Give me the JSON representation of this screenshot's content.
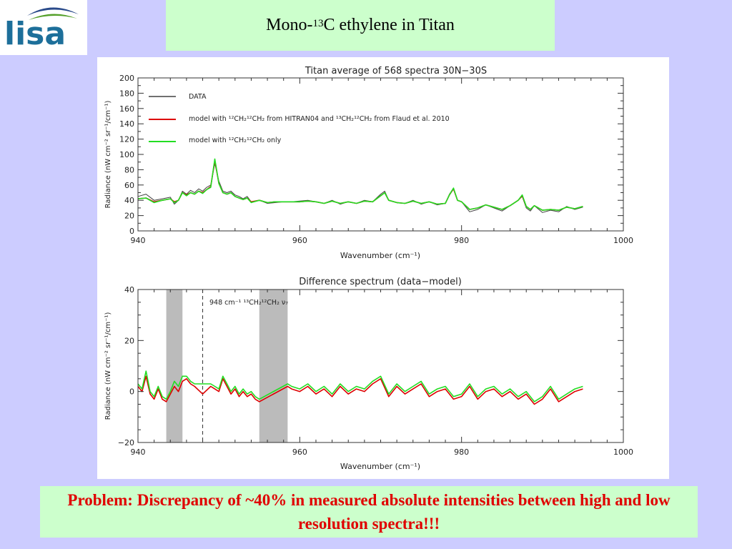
{
  "logo": {
    "text": "lisa"
  },
  "slide_title": {
    "prefix": "Mono-",
    "superscript": "13",
    "suffix": "C ethylene in Titan"
  },
  "problem_statement": "Problem: Discrepancy of  ~40% in measured absolute intensities between high and low resolution spectra!!!",
  "colors": {
    "data": "#404040",
    "model_full": "#dd0000",
    "model_main": "#22dd22",
    "band": "#bbbbbb",
    "slide_bg": "#ccccff",
    "box_green": "#ccffcc",
    "problem_text": "#e00000"
  },
  "chart_data": [
    {
      "type": "line",
      "title": "Titan average of 568 spectra 30N−30S",
      "xlabel": "Wavenumber (cm⁻¹)",
      "ylabel": "Radiance (nW cm⁻² sr⁻¹/cm⁻¹)",
      "xlim": [
        940,
        1000
      ],
      "ylim": [
        0,
        200
      ],
      "xticks": [
        "940",
        "960",
        "980",
        "1000"
      ],
      "yticks": [
        "0",
        "20",
        "40",
        "60",
        "80",
        "100",
        "120",
        "140",
        "160",
        "180",
        "200"
      ],
      "legend": [
        {
          "color": "#404040",
          "label": "DATA"
        },
        {
          "color": "#dd0000",
          "label": "model with ¹²CH₂¹²CH₂ from HITRAN04 and ¹³CH₂¹²CH₂ from Flaud et al. 2010"
        },
        {
          "color": "#22dd22",
          "label": "model with ¹²CH₂¹²CH₂ only"
        }
      ],
      "x": [
        940,
        941,
        942,
        943,
        944,
        944.5,
        945,
        945.5,
        946,
        946.5,
        947,
        947.5,
        948,
        948.5,
        949,
        949.5,
        950,
        950.5,
        951,
        951.5,
        952,
        952.5,
        953,
        953.5,
        954,
        955,
        956,
        957,
        958,
        959,
        960,
        961,
        962,
        963,
        964,
        965,
        966,
        967,
        968,
        969,
        970,
        970.5,
        971,
        972,
        973,
        974,
        975,
        976,
        977,
        978,
        978.5,
        979,
        979.5,
        980,
        981,
        982,
        983,
        984,
        985,
        986,
        987,
        987.5,
        988,
        988.5,
        989,
        990,
        991,
        992,
        993,
        994,
        995
      ],
      "series": [
        {
          "name": "DATA",
          "values": [
            45,
            48,
            40,
            42,
            44,
            35,
            40,
            52,
            48,
            53,
            50,
            55,
            52,
            57,
            60,
            88,
            65,
            52,
            50,
            52,
            47,
            45,
            42,
            45,
            38,
            40,
            36,
            37,
            38,
            38,
            39,
            40,
            38,
            36,
            40,
            35,
            38,
            36,
            40,
            38,
            48,
            52,
            40,
            37,
            36,
            40,
            35,
            38,
            34,
            36,
            48,
            56,
            40,
            38,
            25,
            28,
            34,
            30,
            26,
            33,
            40,
            45,
            30,
            26,
            33,
            24,
            27,
            25,
            32,
            28,
            31
          ]
        },
        {
          "name": "model full",
          "values": [
            42,
            43,
            38,
            40,
            42,
            38,
            40,
            50,
            47,
            50,
            48,
            52,
            50,
            54,
            58,
            92,
            62,
            50,
            48,
            50,
            45,
            43,
            41,
            43,
            38,
            40,
            37,
            38,
            38,
            38,
            38,
            39,
            38,
            36,
            39,
            36,
            38,
            36,
            39,
            38,
            46,
            50,
            40,
            37,
            36,
            39,
            36,
            38,
            35,
            36,
            47,
            55,
            40,
            38,
            28,
            30,
            34,
            31,
            28,
            33,
            40,
            46,
            32,
            28,
            33,
            27,
            28,
            27,
            31,
            29,
            32
          ]
        },
        {
          "name": "model main",
          "values": [
            42,
            43,
            37,
            40,
            42,
            37,
            40,
            50,
            46,
            50,
            48,
            52,
            49,
            54,
            57,
            94,
            62,
            50,
            48,
            50,
            45,
            43,
            41,
            43,
            37,
            40,
            37,
            38,
            38,
            38,
            38,
            39,
            38,
            36,
            39,
            36,
            38,
            36,
            39,
            38,
            46,
            50,
            40,
            37,
            36,
            39,
            36,
            38,
            35,
            36,
            47,
            56,
            40,
            38,
            28,
            30,
            34,
            31,
            28,
            33,
            40,
            47,
            32,
            28,
            33,
            27,
            28,
            27,
            31,
            29,
            32
          ]
        }
      ]
    },
    {
      "type": "line",
      "title": "Difference spectrum (data−model)",
      "xlabel": "Wavenumber (cm⁻¹)",
      "ylabel": "Radiance (nW cm⁻² sr⁻¹/cm⁻¹)",
      "xlim": [
        940,
        1000
      ],
      "ylim": [
        -20,
        40
      ],
      "xticks": [
        "940",
        "960",
        "980",
        "1000"
      ],
      "yticks": [
        "−20",
        "0",
        "20",
        "40"
      ],
      "annotation": "948 cm⁻¹ ¹³CH₂¹²CH₂ ν₇",
      "annotation_x": 948,
      "shaded_bands": [
        [
          943.5,
          945.5
        ],
        [
          955,
          958.5
        ]
      ],
      "x": [
        940,
        940.5,
        941,
        941.5,
        942,
        942.5,
        943,
        943.5,
        944,
        944.5,
        945,
        945.5,
        946,
        946.5,
        947,
        948,
        949,
        949.5,
        950,
        950.5,
        951,
        951.5,
        952,
        952.5,
        953,
        953.5,
        954,
        954.5,
        955,
        958.5,
        959,
        960,
        961,
        962,
        963,
        964,
        965,
        966,
        967,
        968,
        969,
        970,
        971,
        972,
        973,
        974,
        975,
        976,
        977,
        978,
        979,
        980,
        981,
        982,
        983,
        984,
        985,
        986,
        987,
        988,
        989,
        990,
        991,
        992,
        993,
        994,
        995
      ],
      "series": [
        {
          "name": "model full residual",
          "values": [
            2,
            0,
            6,
            -1,
            -3,
            1,
            -3,
            -4,
            -1,
            2,
            0,
            4,
            5,
            3,
            2,
            -1,
            2,
            1,
            0,
            5,
            2,
            -1,
            1,
            -2,
            0,
            -2,
            -1,
            -3,
            -4,
            2,
            1,
            0,
            2,
            -1,
            1,
            -2,
            2,
            -1,
            1,
            0,
            3,
            5,
            -2,
            2,
            -1,
            1,
            3,
            -2,
            0,
            1,
            -3,
            -2,
            2,
            -3,
            0,
            1,
            -2,
            0,
            -3,
            -1,
            -5,
            -3,
            1,
            -4,
            -2,
            0,
            1
          ]
        },
        {
          "name": "model main residual",
          "values": [
            3,
            1,
            8,
            0,
            -2,
            2,
            -2,
            -3,
            0,
            4,
            2,
            6,
            6,
            4,
            3,
            3,
            3,
            2,
            1,
            6,
            3,
            0,
            2,
            -1,
            1,
            -1,
            0,
            -2,
            -3,
            3,
            2,
            1,
            3,
            0,
            2,
            -1,
            3,
            0,
            2,
            1,
            4,
            6,
            -1,
            3,
            0,
            2,
            4,
            -1,
            1,
            2,
            -2,
            -1,
            3,
            -2,
            1,
            2,
            -1,
            1,
            -2,
            0,
            -4,
            -2,
            2,
            -3,
            -1,
            1,
            2
          ]
        }
      ]
    }
  ]
}
